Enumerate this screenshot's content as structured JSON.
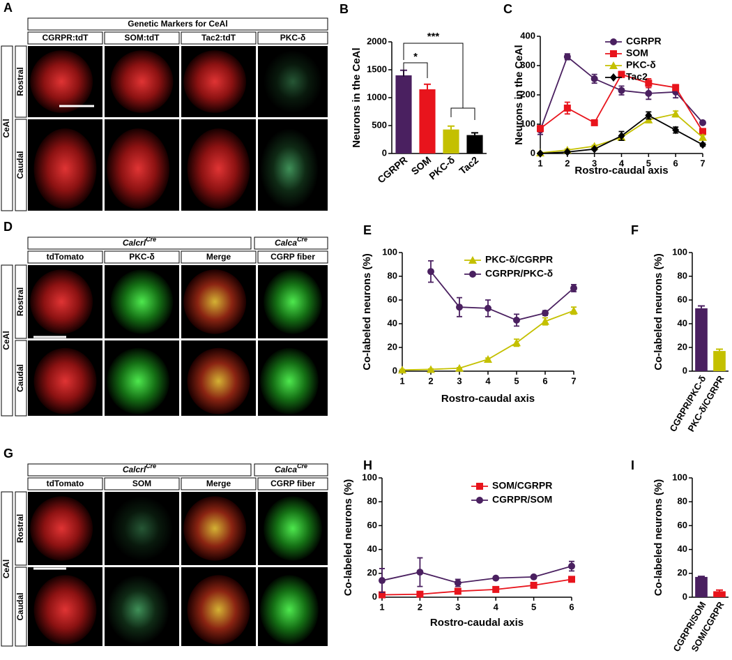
{
  "panels": {
    "A": {
      "label": "A",
      "header": "Genetic Markers for CeAl",
      "columns": [
        "CGRPR:tdT",
        "SOM:tdT",
        "Tac2:tdT",
        "PKC-δ"
      ],
      "region": "CeAl",
      "rows": [
        "Rostral",
        "Caudal"
      ]
    },
    "D": {
      "label": "D",
      "groups": [
        {
          "name": "Calcrl",
          "sup": "Cre"
        },
        {
          "name": "Calca",
          "sup": "Cre"
        }
      ],
      "columns": [
        "tdTomato",
        "PKC-δ",
        "Merge",
        "CGRP fiber"
      ],
      "region": "CeAl",
      "rows": [
        "Rostral",
        "Caudal"
      ]
    },
    "G": {
      "label": "G",
      "groups": [
        {
          "name": "Calcrl",
          "sup": "Cre"
        },
        {
          "name": "Calca",
          "sup": "Cre"
        }
      ],
      "columns": [
        "tdTomato",
        "SOM",
        "Merge",
        "CGRP fiber"
      ],
      "region": "CeAl",
      "rows": [
        "Rostral",
        "Caudal"
      ]
    }
  },
  "chart_data": [
    {
      "panel": "B",
      "type": "bar",
      "y_label": "Neurons in the CeAl",
      "categories": [
        "CGRPR",
        "SOM",
        "PKC-δ",
        "Tac2"
      ],
      "values": [
        1400,
        1150,
        430,
        330
      ],
      "errors": [
        90,
        90,
        60,
        40
      ],
      "colors": [
        "#4a2060",
        "#e8141c",
        "#c4c000",
        "#000000"
      ],
      "ylim": [
        0,
        2000
      ],
      "yticks": [
        0,
        500,
        1000,
        1500,
        2000
      ],
      "annotations": [
        "*",
        "***"
      ]
    },
    {
      "panel": "C",
      "type": "line",
      "x_label": "Rostro-caudal axis",
      "y_label": "Neurons in the CeAl",
      "x": [
        1,
        2,
        3,
        4,
        5,
        6,
        7
      ],
      "xlim": [
        1,
        7
      ],
      "xticks": [
        1,
        2,
        3,
        4,
        5,
        6,
        7
      ],
      "ylim": [
        0,
        400
      ],
      "yticks": [
        0,
        100,
        200,
        300,
        400
      ],
      "legend": "upper right",
      "series": [
        {
          "name": "CGRPR",
          "color": "#4a2060",
          "marker": "circle",
          "values": [
            80,
            330,
            255,
            215,
            205,
            210,
            105
          ],
          "errors": [
            15,
            10,
            15,
            15,
            20,
            20,
            5
          ]
        },
        {
          "name": "SOM",
          "color": "#e8141c",
          "marker": "square",
          "values": [
            85,
            155,
            105,
            270,
            240,
            225,
            75
          ],
          "errors": [
            10,
            20,
            5,
            10,
            15,
            10,
            10
          ]
        },
        {
          "name": "PKC-δ",
          "color": "#c4c000",
          "marker": "triangle",
          "values": [
            2,
            12,
            25,
            55,
            115,
            135,
            55
          ],
          "errors": [
            2,
            3,
            3,
            5,
            10,
            10,
            8
          ]
        },
        {
          "name": "Tac2",
          "color": "#000000",
          "marker": "diamond",
          "values": [
            0,
            5,
            15,
            60,
            130,
            80,
            30
          ],
          "errors": [
            2,
            2,
            3,
            15,
            12,
            10,
            5
          ]
        }
      ]
    },
    {
      "panel": "E",
      "type": "line",
      "x_label": "Rostro-caudal axis",
      "y_label": "Co-labeled neurons (%)",
      "x": [
        1,
        2,
        3,
        4,
        5,
        6,
        7
      ],
      "xlim": [
        1,
        7
      ],
      "xticks": [
        1,
        2,
        3,
        4,
        5,
        6,
        7
      ],
      "ylim": [
        0,
        100
      ],
      "yticks": [
        0,
        20,
        40,
        60,
        80,
        100
      ],
      "legend": "upper right",
      "series": [
        {
          "name": "PKC-δ/CGRPR",
          "color": "#c4c000",
          "marker": "triangle",
          "values": [
            1,
            1.5,
            2.5,
            10,
            24,
            42,
            51
          ],
          "errors": [
            0.5,
            0.5,
            0.5,
            1,
            3,
            3,
            3
          ]
        },
        {
          "name": "CGRPR/PKC-δ",
          "color": "#4a2060",
          "marker": "circle",
          "values": [
            null,
            84,
            54,
            53,
            43,
            49,
            70
          ],
          "errors": [
            null,
            9,
            8,
            7,
            5,
            2,
            3
          ]
        }
      ]
    },
    {
      "panel": "F",
      "type": "bar",
      "y_label": "Co-labeled neurons (%)",
      "categories": [
        "CGRPR/PKC-δ",
        "PKC-δ/CGRPR"
      ],
      "values": [
        53,
        17
      ],
      "errors": [
        2,
        1.5
      ],
      "colors": [
        "#4a2060",
        "#c4c000"
      ],
      "ylim": [
        0,
        100
      ],
      "yticks": [
        0,
        20,
        40,
        60,
        80,
        100
      ]
    },
    {
      "panel": "H",
      "type": "line",
      "x_label": "Rostro-caudal axis",
      "y_label": "Co-labeled neurons (%)",
      "x": [
        1,
        2,
        3,
        4,
        5,
        6
      ],
      "xlim": [
        1,
        6
      ],
      "xticks": [
        1,
        2,
        3,
        4,
        5,
        6
      ],
      "ylim": [
        0,
        100
      ],
      "yticks": [
        0,
        20,
        40,
        60,
        80,
        100
      ],
      "legend": "upper right",
      "series": [
        {
          "name": "SOM/CGRPR",
          "color": "#e8141c",
          "marker": "square",
          "values": [
            2,
            2.5,
            5,
            6.5,
            10,
            15
          ],
          "errors": [
            1,
            1,
            1,
            1,
            1,
            2
          ]
        },
        {
          "name": "CGRPR/SOM",
          "color": "#4a2060",
          "marker": "circle",
          "values": [
            14,
            21,
            12,
            16,
            17,
            26
          ],
          "errors": [
            10,
            12,
            3,
            1,
            1,
            4
          ]
        }
      ]
    },
    {
      "panel": "I",
      "type": "bar",
      "y_label": "Co-labeled neurons (%)",
      "categories": [
        "CGRPR/SOM",
        "SOM/CGRPR"
      ],
      "values": [
        17,
        5
      ],
      "errors": [
        0.5,
        1
      ],
      "colors": [
        "#4a2060",
        "#e8141c"
      ],
      "ylim": [
        0,
        100
      ],
      "yticks": [
        0,
        20,
        40,
        60,
        80,
        100
      ]
    }
  ]
}
